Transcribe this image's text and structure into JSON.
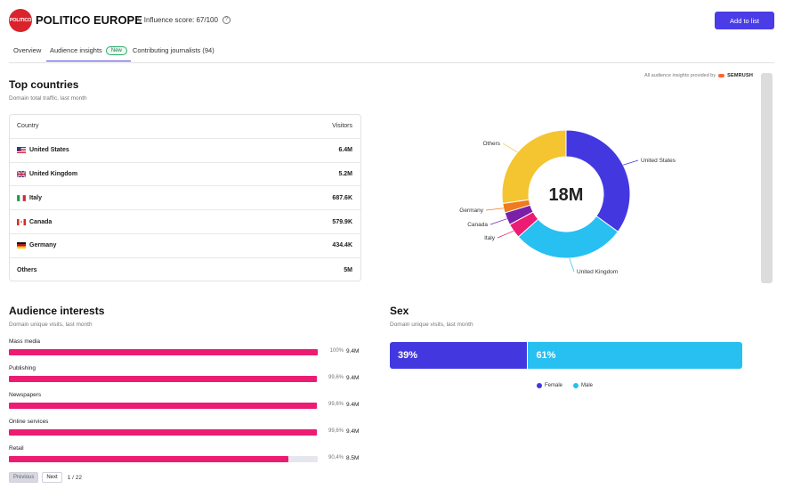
{
  "header": {
    "logo_text": "POLITICO",
    "title": "POLITICO EUROPE",
    "influence_label": "Influence score: 67/100",
    "add_button": "Add to list"
  },
  "tabs": [
    {
      "label": "Overview",
      "active": false
    },
    {
      "label": "Audience insights",
      "badge": "New",
      "active": true
    },
    {
      "label": "Contributing journalists (94)",
      "active": false
    }
  ],
  "provider": {
    "text": "All audience insights provided by",
    "brand": "SEMRUSH"
  },
  "top_countries": {
    "title": "Top countries",
    "subtitle": "Domain total traffic, last month",
    "col_country": "Country",
    "col_visitors": "Visitors",
    "rows": [
      {
        "country": "United States",
        "visitors": "6.4M",
        "flag": "us-flag-icon"
      },
      {
        "country": "United Kingdom",
        "visitors": "5.2M",
        "flag": "gb-flag-icon"
      },
      {
        "country": "Italy",
        "visitors": "687.6K",
        "flag": "it-flag-icon"
      },
      {
        "country": "Canada",
        "visitors": "579.9K",
        "flag": "ca-flag-icon"
      },
      {
        "country": "Germany",
        "visitors": "434.4K",
        "flag": "de-flag-icon"
      },
      {
        "country": "Others",
        "visitors": "5M",
        "flag": ""
      }
    ]
  },
  "chart_data": [
    {
      "type": "pie",
      "title": "",
      "center_label": "18M",
      "categories": [
        "United States",
        "United Kingdom",
        "Italy",
        "Canada",
        "Germany",
        "Others"
      ],
      "values": [
        6.4,
        5.2,
        0.6876,
        0.5799,
        0.4344,
        5.0
      ],
      "colors": [
        "#4338e0",
        "#27c0f0",
        "#ec1c72",
        "#7a1fa8",
        "#f07a1e",
        "#f4c431"
      ]
    },
    {
      "type": "bar",
      "title": "Audience interests",
      "categories": [
        "Mass media",
        "Publishing",
        "Newspapers",
        "Online services",
        "Retail"
      ],
      "values": [
        100,
        99.6,
        99.6,
        99.6,
        90.4
      ],
      "ylim": [
        0,
        100
      ]
    },
    {
      "type": "bar",
      "title": "Sex",
      "categories": [
        "Female",
        "Male"
      ],
      "values": [
        39,
        61
      ]
    }
  ],
  "interests": {
    "title": "Audience interests",
    "subtitle": "Domain unique visits, last month",
    "items": [
      {
        "label": "Mass media",
        "pct": "100%",
        "fraction": 1.0,
        "value": "9.4M"
      },
      {
        "label": "Publishing",
        "pct": "99,6%",
        "fraction": 0.996,
        "value": "9.4M"
      },
      {
        "label": "Newspapers",
        "pct": "99,6%",
        "fraction": 0.996,
        "value": "9.4M"
      },
      {
        "label": "Online services",
        "pct": "99,6%",
        "fraction": 0.996,
        "value": "9.4M"
      },
      {
        "label": "Retail",
        "pct": "90,4%",
        "fraction": 0.904,
        "value": "8.5M"
      }
    ],
    "pager": {
      "prev": "Previous",
      "next": "Next",
      "info": "1 / 22"
    }
  },
  "sex": {
    "title": "Sex",
    "subtitle": "Domain unique visits, last month",
    "female_label": "39%",
    "male_label": "61%",
    "female_fraction": 0.39,
    "legend_female": "Female",
    "legend_male": "Male",
    "female_color": "#4338e0",
    "male_color": "#27c0f0"
  }
}
